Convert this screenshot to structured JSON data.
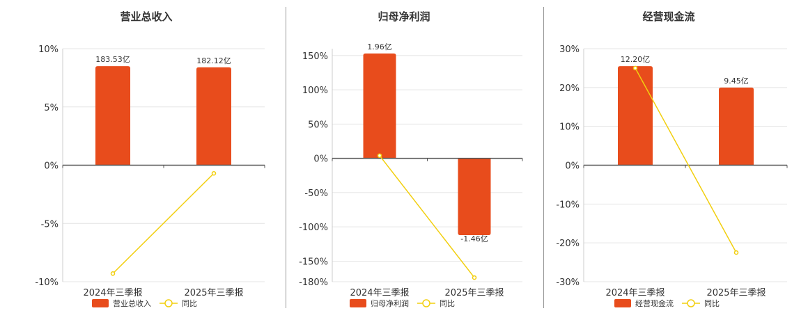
{
  "colors": {
    "bar": "#E84C1C",
    "line": "#F2CF0F",
    "grid": "#E4E4E4",
    "axis": "#555555",
    "divider": "#999999",
    "text": "#333333"
  },
  "chart_data": [
    {
      "type": "bar+line",
      "title": "营业总收入",
      "categories": [
        "2024年三季报",
        "2025年三季报"
      ],
      "bar_series": {
        "name": "营业总收入",
        "labels": [
          "183.53亿",
          "182.12亿"
        ]
      },
      "line_series": {
        "name": "同比",
        "values": [
          -9.3,
          -0.7
        ]
      },
      "yticks": [
        "10%",
        "5%",
        "0%",
        "-5%",
        "-10%"
      ],
      "ylim": [
        -10,
        10
      ]
    },
    {
      "type": "bar+line",
      "title": "归母净利润",
      "categories": [
        "2024年三季报",
        "2025年三季报"
      ],
      "bar_series": {
        "name": "归母净利润",
        "labels": [
          "1.96亿",
          "-1.46亿"
        ]
      },
      "line_series": {
        "name": "同比",
        "values": [
          4,
          -174
        ]
      },
      "yticks": [
        "150%",
        "100%",
        "50%",
        "0%",
        "-50%",
        "-100%",
        "-150%",
        "-180%"
      ],
      "ylim": [
        -180,
        160
      ]
    },
    {
      "type": "bar+line",
      "title": "经营现金流",
      "categories": [
        "2024年三季报",
        "2025年三季报"
      ],
      "bar_series": {
        "name": "经营现金流",
        "labels": [
          "12.20亿",
          "9.45亿"
        ]
      },
      "line_series": {
        "name": "同比",
        "values": [
          25,
          -22.5
        ]
      },
      "yticks": [
        "30%",
        "20%",
        "10%",
        "0%",
        "-10%",
        "-20%",
        "-30%"
      ],
      "ylim": [
        -30,
        30
      ]
    }
  ]
}
